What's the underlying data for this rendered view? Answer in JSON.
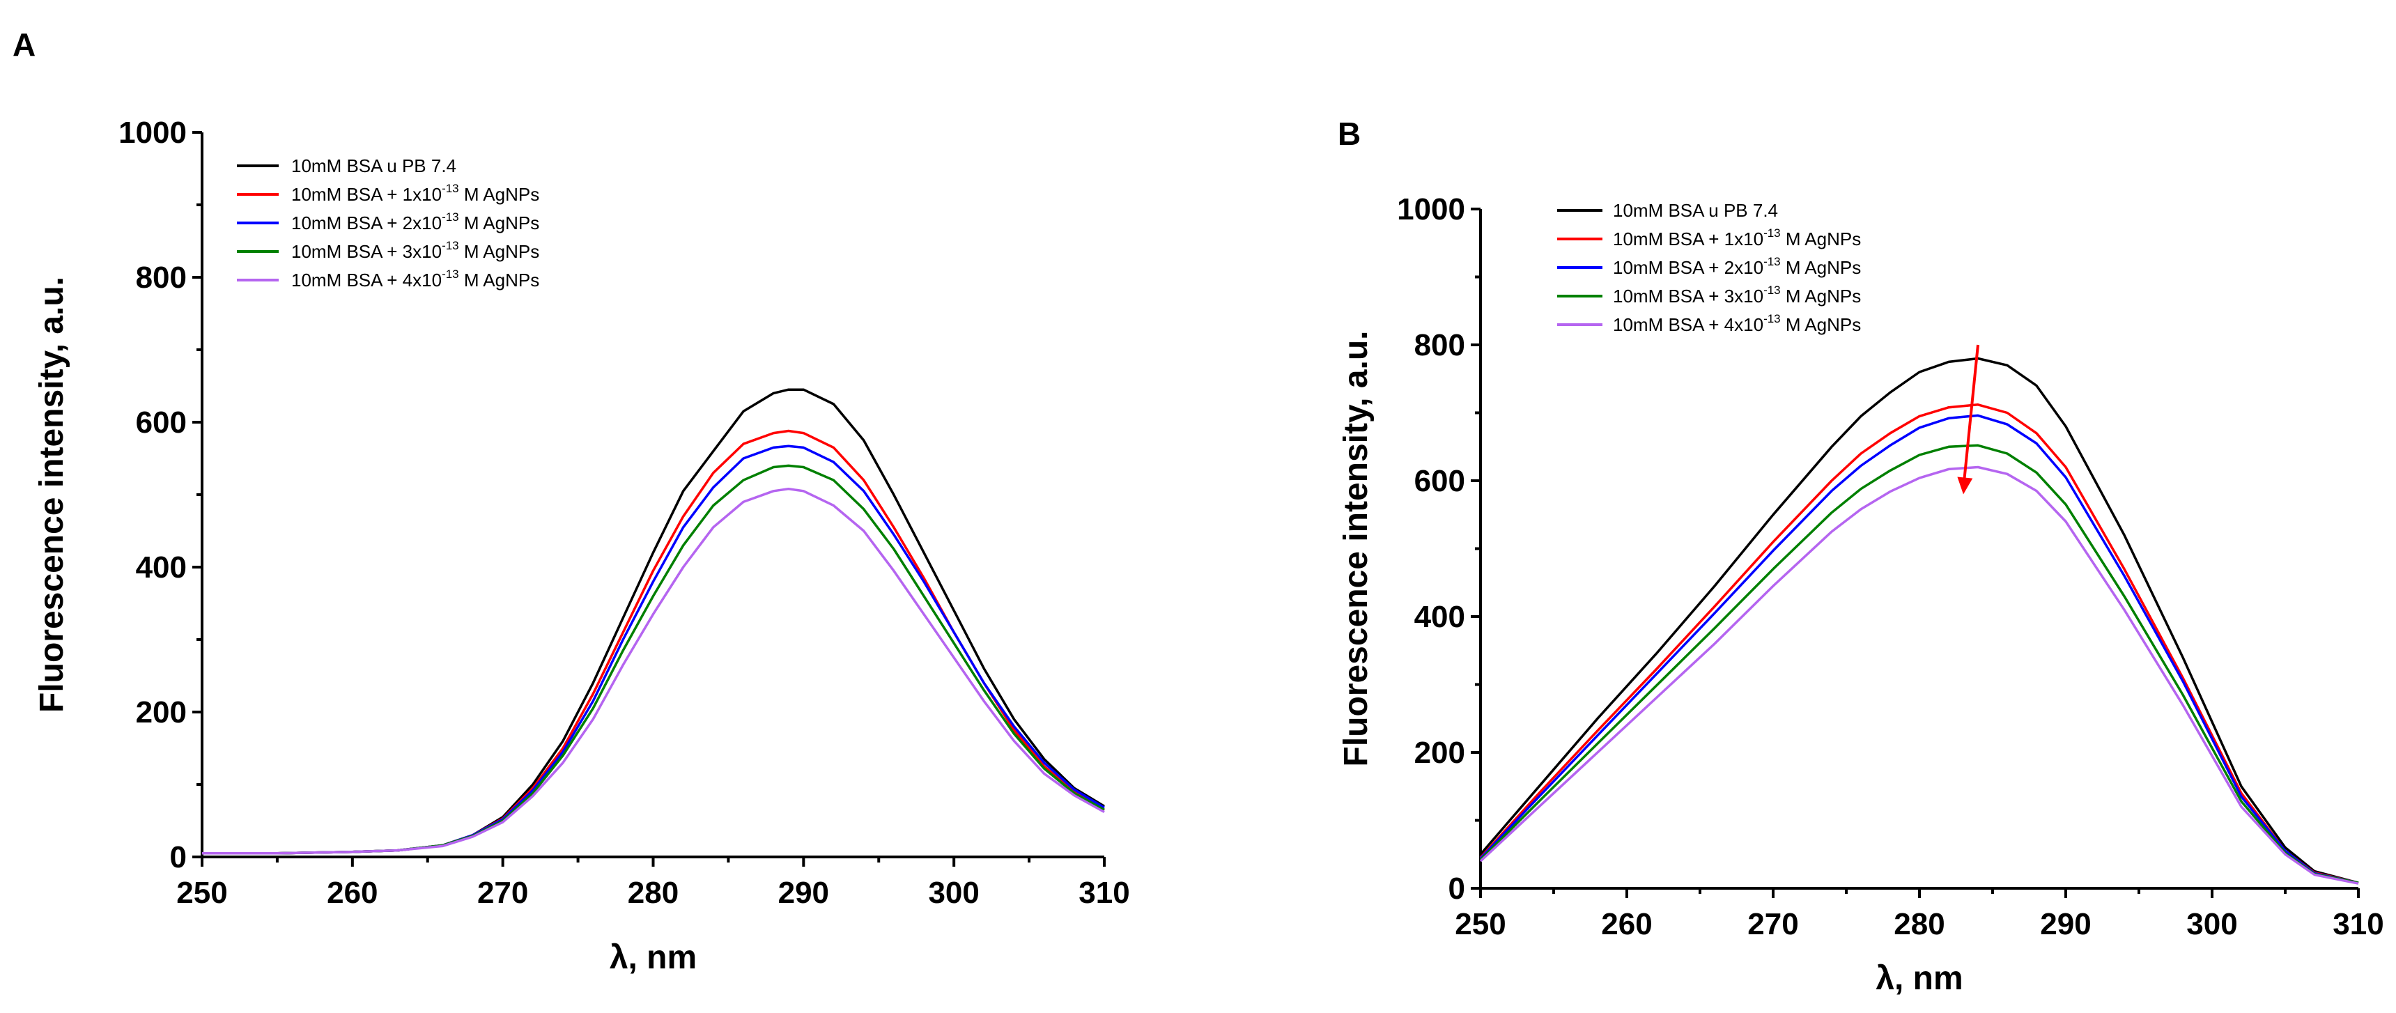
{
  "figure": {
    "colors": {
      "black": "#000000",
      "red": "#ff0000",
      "blue": "#0000ff",
      "green": "#008000",
      "violet": "#b565f0",
      "arrow": "#ff0000"
    }
  },
  "chart_data": [
    {
      "panel": "A",
      "type": "line",
      "title": "",
      "xlabel": "λ, nm",
      "ylabel": "Fluorescence intensity, a.u.",
      "xlim": [
        250,
        310
      ],
      "ylim": [
        0,
        1000
      ],
      "xticks": [
        "250",
        "260",
        "270",
        "280",
        "290",
        "300",
        "310"
      ],
      "yticks": [
        "0",
        "200",
        "400",
        "600",
        "800",
        "1000"
      ],
      "grid": false,
      "legend_position": "top-left",
      "x": [
        250,
        255,
        260,
        263,
        266,
        268,
        270,
        272,
        274,
        276,
        278,
        280,
        282,
        284,
        286,
        288,
        289,
        290,
        292,
        294,
        296,
        298,
        300,
        302,
        304,
        306,
        308,
        310
      ],
      "series": [
        {
          "name": "10mM BSA u PB 7.4",
          "label_main": "10mM BSA u PB 7.4",
          "exp": "",
          "label_tail": "",
          "color": "#000000",
          "values": [
            5,
            5,
            7,
            9,
            16,
            30,
            55,
            100,
            160,
            240,
            330,
            420,
            505,
            560,
            615,
            640,
            645,
            645,
            625,
            575,
            500,
            420,
            340,
            260,
            190,
            135,
            95,
            70
          ]
        },
        {
          "name": "10mM BSA + 1x10-13 M AgNPs",
          "label_main": "10mM BSA + 1x10",
          "exp": "-13",
          "label_tail": " M AgNPs",
          "color": "#ff0000",
          "values": [
            5,
            5,
            7,
            9,
            16,
            30,
            53,
            95,
            150,
            225,
            310,
            395,
            470,
            530,
            570,
            585,
            588,
            585,
            565,
            520,
            455,
            385,
            310,
            240,
            175,
            125,
            90,
            65
          ]
        },
        {
          "name": "10mM BSA + 2x10-13 M AgNPs",
          "label_main": "10mM BSA + 2x10",
          "exp": "-13",
          "label_tail": " M AgNPs",
          "color": "#0000ff",
          "values": [
            5,
            5,
            7,
            9,
            16,
            30,
            52,
            92,
            145,
            215,
            300,
            380,
            455,
            510,
            550,
            565,
            567,
            565,
            545,
            505,
            445,
            380,
            310,
            240,
            180,
            130,
            93,
            68
          ]
        },
        {
          "name": "10mM BSA + 3x10-13 M AgNPs",
          "label_main": "10mM BSA + 3x10",
          "exp": "-13",
          "label_tail": " M AgNPs",
          "color": "#008000",
          "values": [
            5,
            5,
            7,
            9,
            16,
            29,
            50,
            88,
            140,
            205,
            285,
            360,
            430,
            485,
            520,
            538,
            540,
            538,
            520,
            480,
            425,
            360,
            295,
            230,
            170,
            122,
            88,
            65
          ]
        },
        {
          "name": "10mM BSA + 4x10-13 M AgNPs",
          "label_main": "10mM BSA + 4x10",
          "exp": "-13",
          "label_tail": " M AgNPs",
          "color": "#b565f0",
          "values": [
            5,
            5,
            7,
            9,
            15,
            28,
            48,
            84,
            130,
            190,
            265,
            335,
            400,
            455,
            490,
            505,
            508,
            505,
            485,
            450,
            395,
            335,
            275,
            215,
            160,
            115,
            85,
            62
          ]
        }
      ]
    },
    {
      "panel": "B",
      "type": "line",
      "title": "",
      "xlabel": "λ, nm",
      "ylabel": "Fluorescence intensity, a.u.",
      "xlim": [
        250,
        310
      ],
      "ylim": [
        0,
        1000
      ],
      "xticks": [
        "250",
        "260",
        "270",
        "280",
        "290",
        "300",
        "310"
      ],
      "yticks": [
        "0",
        "200",
        "400",
        "600",
        "800",
        "1000"
      ],
      "grid": false,
      "legend_position": "top-left",
      "annotation": {
        "type": "arrow",
        "from": [
          284,
          800
        ],
        "to": [
          283,
          580
        ],
        "color": "#ff0000"
      },
      "x": [
        250,
        254,
        258,
        262,
        266,
        270,
        274,
        276,
        278,
        280,
        282,
        284,
        286,
        288,
        290,
        294,
        298,
        302,
        305,
        307,
        310
      ],
      "series": [
        {
          "name": "10mM BSA u PB 7.4",
          "label_main": "10mM BSA u PB 7.4",
          "exp": "",
          "label_tail": "",
          "color": "#000000",
          "values": [
            50,
            150,
            250,
            345,
            445,
            550,
            650,
            695,
            730,
            760,
            775,
            780,
            770,
            740,
            680,
            520,
            340,
            150,
            60,
            25,
            8
          ]
        },
        {
          "name": "10mM BSA + 1x10-13 M AgNPs",
          "label_main": "10mM BSA + 1x10",
          "exp": "-13",
          "label_tail": " M AgNPs",
          "color": "#ff0000",
          "values": [
            45,
            140,
            232,
            322,
            415,
            510,
            600,
            640,
            670,
            695,
            708,
            712,
            700,
            670,
            620,
            470,
            310,
            140,
            55,
            23,
            8
          ]
        },
        {
          "name": "10mM BSA + 2x10-13 M AgNPs",
          "label_main": "10mM BSA + 2x10",
          "exp": "-13",
          "label_tail": " M AgNPs",
          "color": "#0000ff",
          "values": [
            44,
            135,
            225,
            315,
            405,
            497,
            585,
            622,
            652,
            678,
            692,
            696,
            683,
            655,
            605,
            460,
            305,
            135,
            55,
            22,
            8
          ]
        },
        {
          "name": "10mM BSA + 3x10-13 M AgNPs",
          "label_main": "10mM BSA + 3x10",
          "exp": "-13",
          "label_tail": " M AgNPs",
          "color": "#008000",
          "values": [
            42,
            128,
            213,
            298,
            383,
            470,
            553,
            588,
            615,
            638,
            650,
            652,
            640,
            612,
            565,
            430,
            285,
            128,
            52,
            21,
            8
          ]
        },
        {
          "name": "10mM BSA + 4x10-13 M AgNPs",
          "label_main": "10mM BSA + 4x10",
          "exp": "-13",
          "label_tail": " M AgNPs",
          "color": "#b565f0",
          "values": [
            40,
            120,
            200,
            280,
            360,
            445,
            525,
            558,
            584,
            604,
            617,
            620,
            610,
            585,
            540,
            410,
            270,
            120,
            50,
            20,
            7
          ]
        }
      ]
    }
  ]
}
